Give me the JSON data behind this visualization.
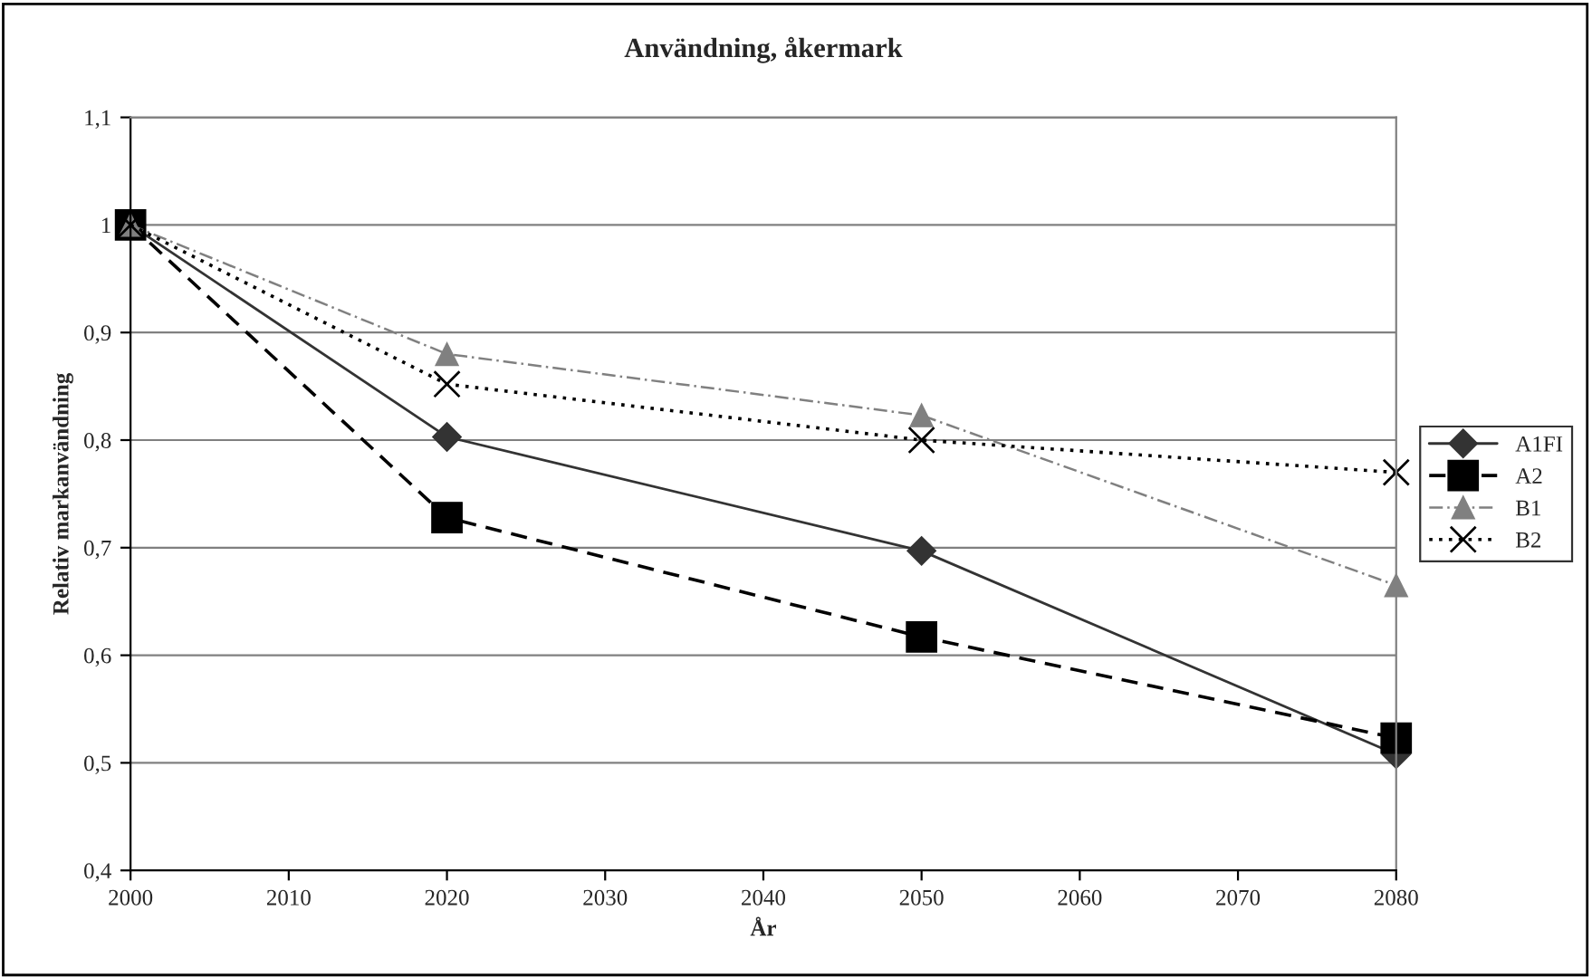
{
  "chart_data": {
    "type": "line",
    "title": "Användning, åkermark",
    "xlabel": "År",
    "ylabel": "Relativ markanvändning",
    "x": [
      2000,
      2020,
      2050,
      2080
    ],
    "series": [
      {
        "name": "A1FI",
        "color": "#333333",
        "marker": "diamond",
        "line_style": "solid",
        "values": [
          1.0,
          0.803,
          0.697,
          0.508
        ]
      },
      {
        "name": "A2",
        "color": "#000000",
        "marker": "square",
        "line_style": "dashed",
        "values": [
          1.0,
          0.728,
          0.617,
          0.523
        ]
      },
      {
        "name": "B1",
        "color": "#808080",
        "marker": "triangle",
        "line_style": "dashdot",
        "values": [
          1.0,
          0.88,
          0.823,
          0.665
        ]
      },
      {
        "name": "B2",
        "color": "#000000",
        "marker": "cross",
        "line_style": "dotted",
        "values": [
          1.0,
          0.852,
          0.8,
          0.77
        ]
      }
    ],
    "xlim": [
      2000,
      2080
    ],
    "xticks": [
      2000,
      2010,
      2020,
      2030,
      2040,
      2050,
      2060,
      2070,
      2080
    ],
    "ylim": [
      0.4,
      1.1
    ],
    "yticks": [
      {
        "value": 0.4,
        "label": "0,4"
      },
      {
        "value": 0.5,
        "label": "0,5"
      },
      {
        "value": 0.6,
        "label": "0,6"
      },
      {
        "value": 0.7,
        "label": "0,7"
      },
      {
        "value": 0.8,
        "label": "0,8"
      },
      {
        "value": 0.9,
        "label": "0,9"
      },
      {
        "value": 1,
        "label": "1"
      },
      {
        "value": 1.1,
        "label": "1,1"
      }
    ],
    "grid": "y",
    "legend": "right"
  }
}
